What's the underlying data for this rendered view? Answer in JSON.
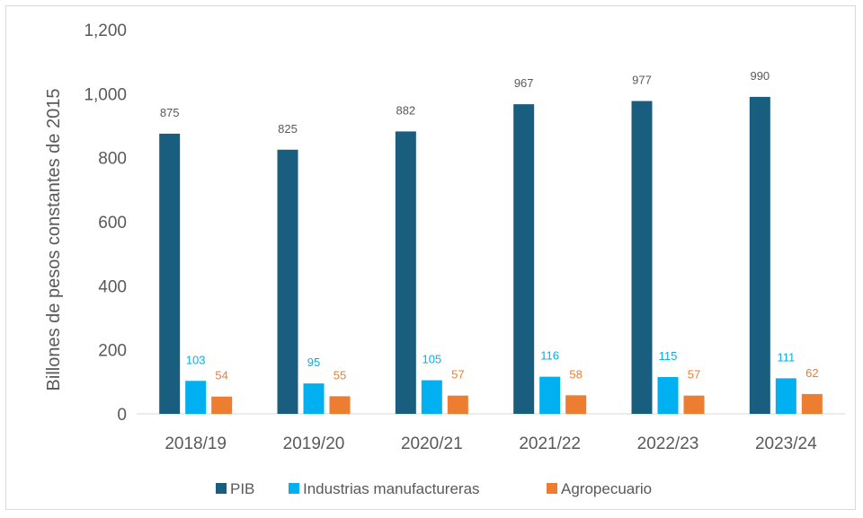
{
  "chart_data": {
    "type": "bar",
    "title": "",
    "xlabel": "",
    "ylabel": "Billones de pesos constantes de 2015",
    "ylim": [
      0,
      1200
    ],
    "yticks": [
      0,
      200,
      400,
      600,
      800,
      1000,
      1200
    ],
    "ytick_labels": [
      "0",
      "200",
      "400",
      "600",
      "800",
      "1,000",
      "1,200"
    ],
    "grid": false,
    "legend_position": "bottom",
    "categories": [
      "2018/19",
      "2019/20",
      "2020/21",
      "2021/22",
      "2022/23",
      "2023/24"
    ],
    "series": [
      {
        "name": "PIB",
        "color": "#1a5e7f",
        "label_color": "#595959",
        "values": [
          875,
          825,
          882,
          967,
          977,
          990
        ]
      },
      {
        "name": "Industrias manufactureras",
        "color": "#00b0f0",
        "label_color": "#00b0f0",
        "values": [
          103,
          95,
          105,
          116,
          115,
          111
        ]
      },
      {
        "name": "Agropecuario",
        "color": "#ed7d31",
        "label_color": "#ed7d31",
        "values": [
          54,
          55,
          57,
          58,
          57,
          62
        ]
      }
    ]
  }
}
